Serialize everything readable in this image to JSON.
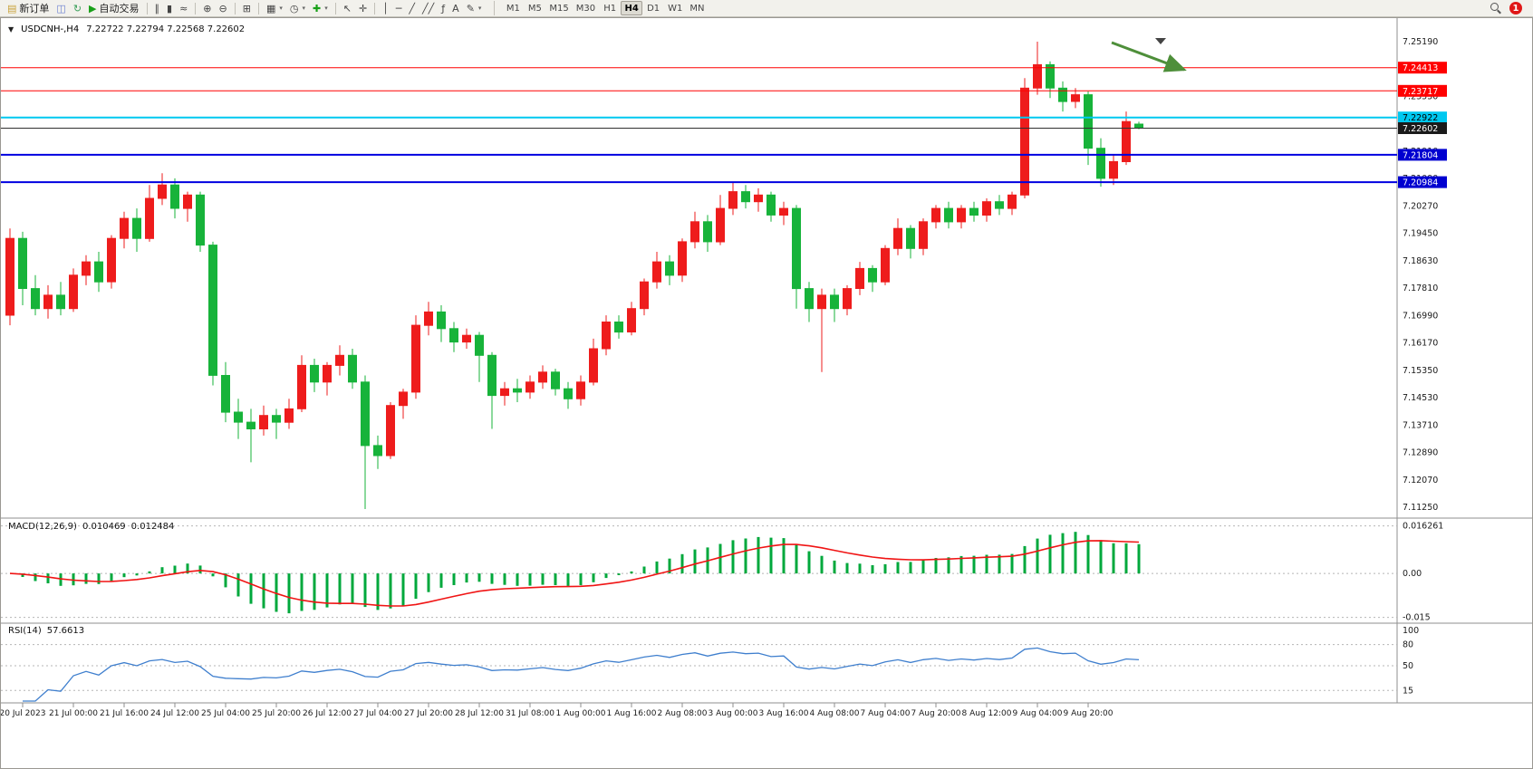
{
  "toolbar": {
    "groups": [
      {
        "items": [
          {
            "name": "new-order",
            "glyph": "▤",
            "glyph_color": "#c9a23a",
            "label": "新订单"
          },
          {
            "name": "chart-profiles",
            "glyph": "◫",
            "glyph_color": "#6b7fd0"
          },
          {
            "name": "refresh",
            "glyph": "↻",
            "glyph_color": "#3aa05a"
          },
          {
            "name": "auto-trading",
            "glyph": "▶",
            "glyph_color": "#18a018",
            "label": "自动交易"
          }
        ]
      },
      {
        "items": [
          {
            "name": "bar-chart-mode",
            "glyph": "∥"
          },
          {
            "name": "candlestick-chart-mode",
            "glyph": "▮"
          },
          {
            "name": "line-chart-mode",
            "glyph": "≈"
          }
        ]
      },
      {
        "items": [
          {
            "name": "zoom-in",
            "glyph": "⊕"
          },
          {
            "name": "zoom-out",
            "glyph": "⊖"
          }
        ]
      },
      {
        "items": [
          {
            "name": "tile-windows",
            "glyph": "⊞"
          }
        ]
      },
      {
        "items": [
          {
            "name": "templates",
            "glyph": "▦",
            "dropdown": true
          },
          {
            "name": "period-menu",
            "glyph": "◷",
            "dropdown": true
          },
          {
            "name": "add-indicator",
            "glyph": "✚",
            "glyph_color": "#18a018",
            "dropdown": true
          }
        ]
      },
      {
        "items": [
          {
            "name": "cursor-tool",
            "glyph": "↖"
          },
          {
            "name": "crosshair-tool",
            "glyph": "✛"
          }
        ]
      },
      {
        "items": [
          {
            "name": "vertical-line-tool",
            "glyph": "│"
          },
          {
            "name": "horizontal-line-tool",
            "glyph": "─"
          },
          {
            "name": "trendline-tool",
            "glyph": "╱"
          },
          {
            "name": "channel-tool",
            "glyph": "╱╱"
          },
          {
            "name": "fibonacci-tool",
            "glyph": "ƒ"
          },
          {
            "name": "text-tool",
            "glyph": "A"
          },
          {
            "name": "arrows-tool",
            "glyph": "✎",
            "dropdown": true
          }
        ]
      }
    ],
    "timeframes": {
      "items": [
        "M1",
        "M5",
        "M15",
        "M30",
        "H1",
        "H4",
        "D1",
        "W1",
        "MN"
      ],
      "active": "H4"
    },
    "notification_count": "1"
  },
  "chart": {
    "collapse_arrow": "▼",
    "title_symbol": "USDCNH-,H4",
    "title_ohlc": "7.22722 7.22794 7.22568 7.22602",
    "up_color": "#ee1c1c",
    "down_color": "#17b33a",
    "price_axis_ticks": [
      "7.25190",
      "7.24370",
      "7.23550",
      "7.22730",
      "7.21910",
      "7.21090",
      "7.20270",
      "7.19450",
      "7.18630",
      "7.17810",
      "7.16990",
      "7.16170",
      "7.15350",
      "7.14530",
      "7.13710",
      "7.12890",
      "7.12070",
      "7.11250"
    ],
    "levels": [
      {
        "price": 7.24413,
        "label": "7.24413",
        "color": "#ff0000",
        "thickness": 1,
        "badge_bg": "#ff0000",
        "badge_fg": "#ffffff"
      },
      {
        "price": 7.23717,
        "label": "7.23717",
        "color": "#ff0000",
        "thickness": 1,
        "badge_bg": "#ff0000",
        "badge_fg": "#ffffff"
      },
      {
        "price": 7.22922,
        "label": "7.22922",
        "color": "#00c8f0",
        "thickness": 2,
        "badge_bg": "#00c8f0",
        "badge_fg": "#000000"
      },
      {
        "price": 7.22602,
        "label": "7.22602",
        "color": "#303030",
        "thickness": 1,
        "badge_bg": "#1a1a1a",
        "badge_fg": "#ffffff"
      },
      {
        "price": 7.21804,
        "label": "7.21804",
        "color": "#0000e0",
        "thickness": 2,
        "badge_bg": "#0000d0",
        "badge_fg": "#ffffff"
      },
      {
        "price": 7.20984,
        "label": "7.20984",
        "color": "#0000e0",
        "thickness": 2,
        "badge_bg": "#0000d0",
        "badge_fg": "#ffffff"
      }
    ],
    "annotation_arrow": {
      "color": "#4e8f3a"
    }
  },
  "macd": {
    "name": "MACD(12,26,9)",
    "value1": "0.010469",
    "value2": "0.012484",
    "ticks": [
      "0.016261",
      "0.00",
      "-0.015"
    ],
    "histogram_color": "#00a83c",
    "signal_color": "#f01414"
  },
  "rsi": {
    "name": "RSI(14)",
    "value": "57.6613",
    "ticks": [
      "100",
      "80",
      "50",
      "15"
    ],
    "line_color": "#3f7fce"
  },
  "chart_data": {
    "type": "candlestick",
    "symbol": "USDCNH",
    "timeframe": "H4",
    "ylim": [
      7.1123,
      7.2519
    ],
    "current_ohlc": {
      "open": 7.22722,
      "high": 7.22794,
      "low": 7.22568,
      "close": 7.22602
    },
    "levels": [
      7.24413,
      7.23717,
      7.22922,
      7.22602,
      7.21804,
      7.20984
    ],
    "label_step_bars": 4,
    "x_labels": [
      "20 Jul 2023",
      "21 Jul 00:00",
      "21 Jul 16:00",
      "24 Jul 12:00",
      "25 Jul 04:00",
      "25 Jul 20:00",
      "26 Jul 12:00",
      "27 Jul 04:00",
      "27 Jul 20:00",
      "28 Jul 12:00",
      "31 Jul 08:00",
      "1 Aug 00:00",
      "1 Aug 16:00",
      "2 Aug 08:00",
      "3 Aug 00:00",
      "3 Aug 16:00",
      "4 Aug 08:00",
      "7 Aug 04:00",
      "7 Aug 20:00",
      "8 Aug 12:00",
      "9 Aug 04:00",
      "9 Aug 20:00"
    ],
    "candles": [
      [
        7.17,
        7.196,
        7.167,
        7.193
      ],
      [
        7.193,
        7.195,
        7.173,
        7.178
      ],
      [
        7.178,
        7.182,
        7.17,
        7.172
      ],
      [
        7.172,
        7.179,
        7.169,
        7.176
      ],
      [
        7.176,
        7.18,
        7.17,
        7.172
      ],
      [
        7.172,
        7.184,
        7.171,
        7.182
      ],
      [
        7.182,
        7.188,
        7.179,
        7.186
      ],
      [
        7.186,
        7.189,
        7.177,
        7.18
      ],
      [
        7.18,
        7.194,
        7.178,
        7.193
      ],
      [
        7.193,
        7.201,
        7.19,
        7.199
      ],
      [
        7.199,
        7.202,
        7.189,
        7.193
      ],
      [
        7.193,
        7.209,
        7.192,
        7.205
      ],
      [
        7.205,
        7.2125,
        7.203,
        7.209
      ],
      [
        7.209,
        7.211,
        7.199,
        7.202
      ],
      [
        7.202,
        7.207,
        7.198,
        7.206
      ],
      [
        7.206,
        7.207,
        7.189,
        7.191
      ],
      [
        7.191,
        7.192,
        7.149,
        7.152
      ],
      [
        7.152,
        7.156,
        7.138,
        7.141
      ],
      [
        7.141,
        7.145,
        7.133,
        7.138
      ],
      [
        7.138,
        7.142,
        7.126,
        7.136
      ],
      [
        7.136,
        7.143,
        7.134,
        7.14
      ],
      [
        7.14,
        7.142,
        7.133,
        7.138
      ],
      [
        7.138,
        7.145,
        7.136,
        7.142
      ],
      [
        7.142,
        7.158,
        7.141,
        7.155
      ],
      [
        7.155,
        7.157,
        7.147,
        7.15
      ],
      [
        7.15,
        7.156,
        7.146,
        7.155
      ],
      [
        7.155,
        7.161,
        7.152,
        7.158
      ],
      [
        7.158,
        7.16,
        7.148,
        7.15
      ],
      [
        7.15,
        7.152,
        7.112,
        7.131
      ],
      [
        7.131,
        7.134,
        7.124,
        7.128
      ],
      [
        7.128,
        7.144,
        7.127,
        7.143
      ],
      [
        7.143,
        7.148,
        7.139,
        7.147
      ],
      [
        7.147,
        7.17,
        7.145,
        7.167
      ],
      [
        7.167,
        7.174,
        7.164,
        7.171
      ],
      [
        7.171,
        7.173,
        7.162,
        7.166
      ],
      [
        7.166,
        7.168,
        7.159,
        7.162
      ],
      [
        7.162,
        7.166,
        7.16,
        7.164
      ],
      [
        7.164,
        7.165,
        7.15,
        7.158
      ],
      [
        7.158,
        7.159,
        7.136,
        7.146
      ],
      [
        7.146,
        7.15,
        7.143,
        7.148
      ],
      [
        7.148,
        7.151,
        7.144,
        7.147
      ],
      [
        7.147,
        7.152,
        7.145,
        7.15
      ],
      [
        7.15,
        7.155,
        7.148,
        7.153
      ],
      [
        7.153,
        7.154,
        7.146,
        7.148
      ],
      [
        7.148,
        7.15,
        7.142,
        7.145
      ],
      [
        7.145,
        7.152,
        7.143,
        7.15
      ],
      [
        7.15,
        7.163,
        7.149,
        7.16
      ],
      [
        7.16,
        7.17,
        7.158,
        7.168
      ],
      [
        7.168,
        7.17,
        7.163,
        7.165
      ],
      [
        7.165,
        7.174,
        7.164,
        7.172
      ],
      [
        7.172,
        7.181,
        7.17,
        7.18
      ],
      [
        7.18,
        7.189,
        7.178,
        7.186
      ],
      [
        7.186,
        7.188,
        7.179,
        7.182
      ],
      [
        7.182,
        7.193,
        7.18,
        7.192
      ],
      [
        7.192,
        7.201,
        7.19,
        7.198
      ],
      [
        7.198,
        7.2,
        7.189,
        7.192
      ],
      [
        7.192,
        7.206,
        7.191,
        7.202
      ],
      [
        7.202,
        7.21,
        7.2,
        7.207
      ],
      [
        7.207,
        7.209,
        7.202,
        7.204
      ],
      [
        7.204,
        7.208,
        7.201,
        7.206
      ],
      [
        7.206,
        7.207,
        7.198,
        7.2
      ],
      [
        7.2,
        7.204,
        7.197,
        7.202
      ],
      [
        7.202,
        7.203,
        7.172,
        7.178
      ],
      [
        7.178,
        7.18,
        7.168,
        7.172
      ],
      [
        7.172,
        7.178,
        7.153,
        7.176
      ],
      [
        7.176,
        7.178,
        7.168,
        7.172
      ],
      [
        7.172,
        7.179,
        7.17,
        7.178
      ],
      [
        7.178,
        7.186,
        7.176,
        7.184
      ],
      [
        7.184,
        7.185,
        7.177,
        7.18
      ],
      [
        7.18,
        7.191,
        7.179,
        7.19
      ],
      [
        7.19,
        7.199,
        7.188,
        7.196
      ],
      [
        7.196,
        7.197,
        7.187,
        7.19
      ],
      [
        7.19,
        7.199,
        7.188,
        7.198
      ],
      [
        7.198,
        7.203,
        7.196,
        7.202
      ],
      [
        7.202,
        7.204,
        7.196,
        7.198
      ],
      [
        7.198,
        7.203,
        7.196,
        7.202
      ],
      [
        7.202,
        7.204,
        7.198,
        7.2
      ],
      [
        7.2,
        7.205,
        7.198,
        7.204
      ],
      [
        7.204,
        7.206,
        7.2,
        7.202
      ],
      [
        7.202,
        7.207,
        7.2,
        7.206
      ],
      [
        7.206,
        7.241,
        7.205,
        7.238
      ],
      [
        7.238,
        7.2519,
        7.236,
        7.245
      ],
      [
        7.245,
        7.246,
        7.235,
        7.238
      ],
      [
        7.238,
        7.24,
        7.231,
        7.234
      ],
      [
        7.234,
        7.238,
        7.232,
        7.236
      ],
      [
        7.236,
        7.237,
        7.215,
        7.22
      ],
      [
        7.22,
        7.223,
        7.2085,
        7.211
      ],
      [
        7.211,
        7.218,
        7.209,
        7.216
      ],
      [
        7.216,
        7.231,
        7.215,
        7.228
      ],
      [
        7.22722,
        7.22794,
        7.22568,
        7.22602
      ]
    ],
    "indicators": [
      {
        "type": "MACD",
        "params": [
          12,
          26,
          9
        ],
        "last_macd": 0.010469,
        "last_signal": 0.012484
      },
      {
        "type": "RSI",
        "params": [
          14
        ],
        "last_value": 57.6613
      }
    ]
  }
}
